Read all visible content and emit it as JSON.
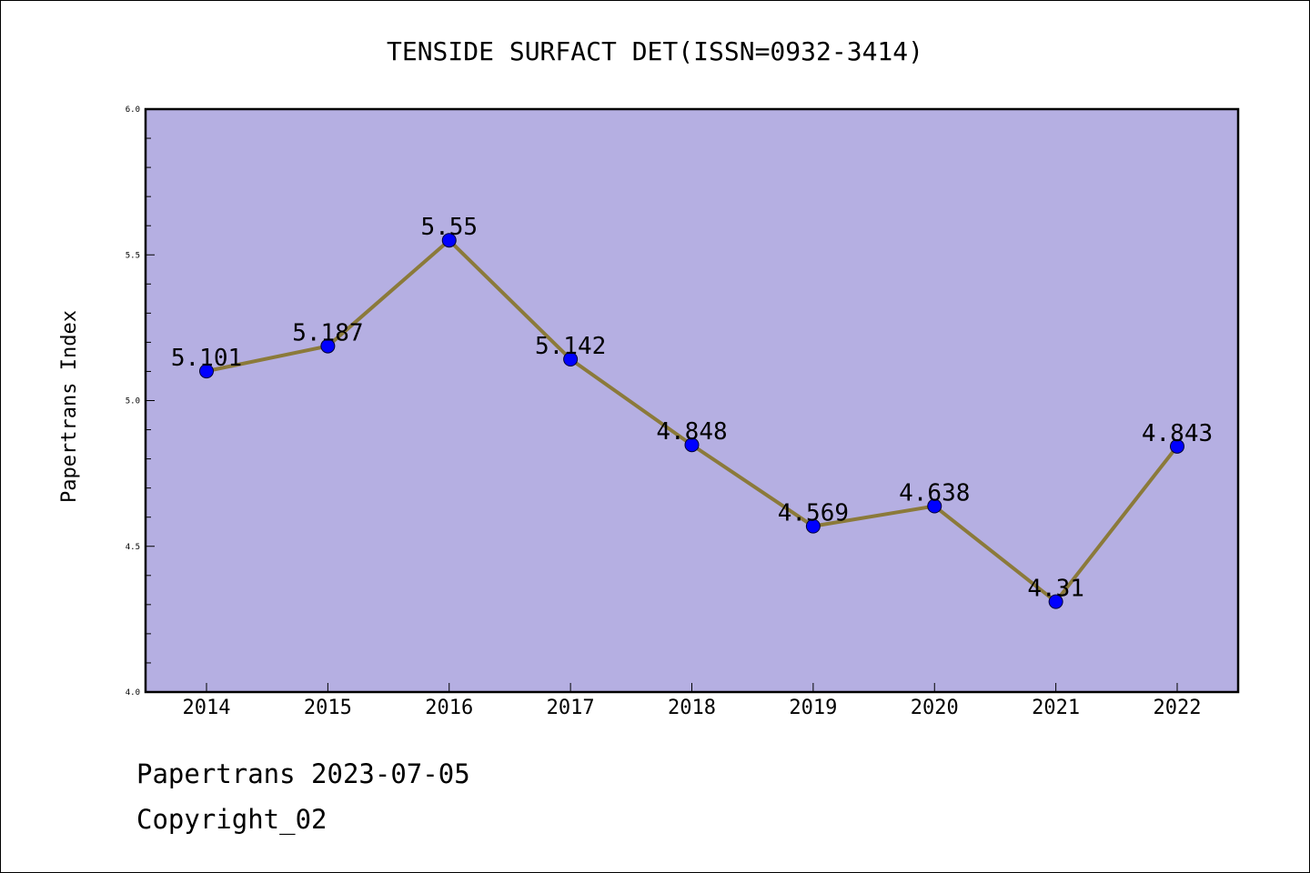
{
  "chart_data": {
    "type": "line",
    "title": "TENSIDE SURFACT DET(ISSN=0932-3414)",
    "xlabel": "",
    "ylabel": "Papertrans Index",
    "categories": [
      "2014",
      "2015",
      "2016",
      "2017",
      "2018",
      "2019",
      "2020",
      "2021",
      "2022"
    ],
    "series": [
      {
        "values": [
          5.101,
          5.187,
          5.55,
          5.142,
          4.848,
          4.569,
          4.638,
          4.31,
          4.843
        ],
        "labels": [
          "5.101",
          "5.187",
          "5.55",
          "5.142",
          "4.848",
          "4.569",
          "4.638",
          "4.31",
          "4.843"
        ]
      }
    ],
    "ylim": [
      4.0,
      6.0
    ],
    "yticks": [
      "4.0",
      "4.5",
      "5.0",
      "5.5",
      "6.0"
    ],
    "grid": false,
    "colors": {
      "plot_background": "#b5afe2",
      "line": "#8b7a3a",
      "marker": "#0000ff"
    }
  },
  "footer": {
    "line1": "Papertrans 2023-07-05",
    "line2": "Copyright_02"
  }
}
